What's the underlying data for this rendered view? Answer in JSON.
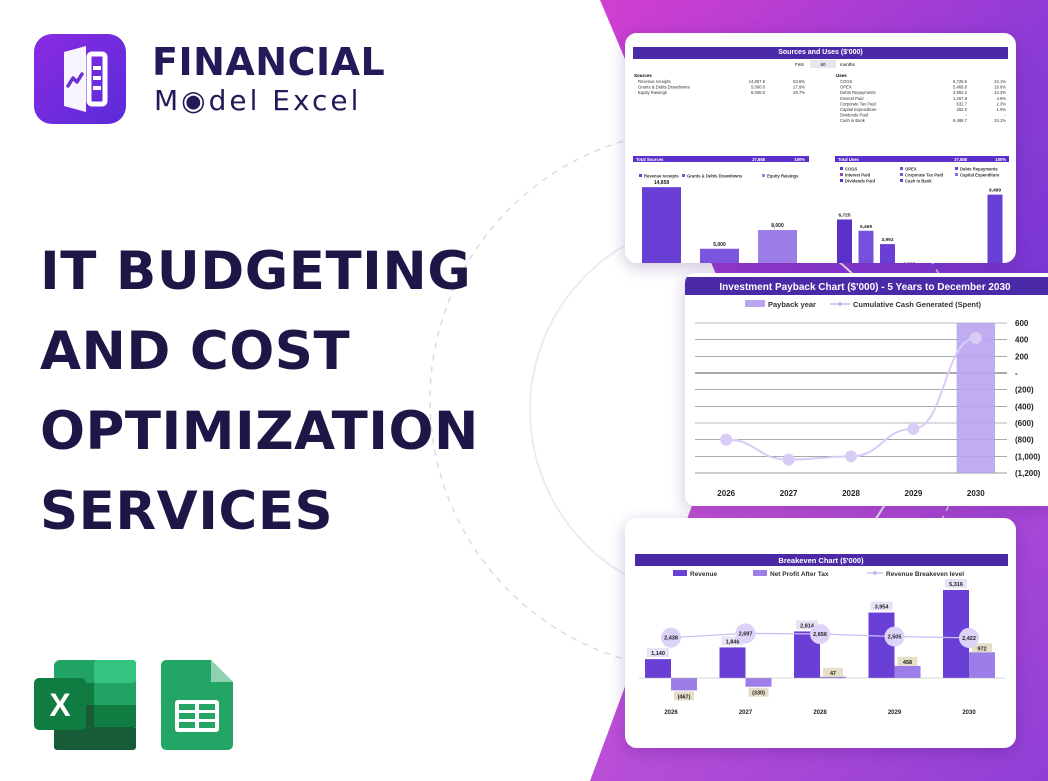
{
  "brand": {
    "line1": "FINANCIAL",
    "line2": "M◉del Excel"
  },
  "headline": {
    "lines": [
      "IT BUDGETING",
      "AND COST",
      "OPTIMIZATION",
      "SERVICES"
    ]
  },
  "colors": {
    "primary": "#5b2fc9",
    "accent": "#c04bd6",
    "light": "#b9a4f0",
    "dark": "#1d1748"
  },
  "icons": {
    "excel": "excel-icon",
    "sheets": "google-sheets-icon",
    "logo": "financial-model-excel-logo-icon"
  },
  "sources_uses": {
    "title": "Sources and Uses ($'000)",
    "first_label": "First",
    "first_value": "60",
    "months_label": "months",
    "sources_header": "Sources",
    "sources": [
      {
        "label": "Revenue receipts",
        "value": "14,857.6",
        "pct": "53.5%"
      },
      {
        "label": "Grants & Debts Drawdowns",
        "value": "5,000.0",
        "pct": "17.9%"
      },
      {
        "label": "Equity Raisings",
        "value": "8,000.0",
        "pct": "28.7%"
      }
    ],
    "sources_total": {
      "label": "Total Sources",
      "value": "27,858",
      "pct": "100%"
    },
    "uses_header": "Uses",
    "uses": [
      {
        "label": "COGS",
        "value": "6,725.5",
        "pct": "24.1%"
      },
      {
        "label": "OPEX",
        "value": "5,468.8",
        "pct": "19.6%"
      },
      {
        "label": "Debts Repayments",
        "value": "3,992.2",
        "pct": "14.3%"
      },
      {
        "label": "Interest Paid",
        "value": "1,267.8",
        "pct": "4.6%"
      },
      {
        "label": "Corporate Tax Paid",
        "value": "632.7",
        "pct": "2.3%"
      },
      {
        "label": "Capital Expenditure",
        "value": "282.0",
        "pct": "1.0%"
      },
      {
        "label": "Dividends Paid",
        "value": "-",
        "pct": "-"
      },
      {
        "label": "Cash in Bank",
        "value": "9,488.7",
        "pct": "34.1%"
      }
    ],
    "uses_total": {
      "label": "Total Uses",
      "value": "27,858",
      "pct": "100%"
    }
  },
  "chart_data": [
    {
      "type": "bar",
      "title": "",
      "categories": [
        "Revenue receipts",
        "Grants & Debts Drawdowns",
        "Equity Raisings"
      ],
      "values": [
        14858,
        5000,
        8000
      ],
      "labels": [
        "14,858",
        "5,000",
        "8,000"
      ],
      "legend": [
        "Revenue receipts",
        "Grants & Debts Drawdowns",
        "Equity Raisings"
      ],
      "colors": [
        "#6a3fd6",
        "#7b55de",
        "#9d7ee8"
      ],
      "ylim": [
        0,
        16000
      ]
    },
    {
      "type": "bar",
      "title": "",
      "categories": [
        "COGS",
        "OPEX",
        "Debts Repayments",
        "Interest Paid",
        "Corporate Tax Paid",
        "Capital Expenditure",
        "Dividends Paid",
        "Cash in Bank"
      ],
      "values": [
        6725,
        5469,
        3992,
        1268,
        633,
        282,
        0,
        9489
      ],
      "labels": [
        "6,725",
        "5,469",
        "3,992",
        "1,268",
        "633",
        "282",
        "0",
        "9,489"
      ],
      "legend": [
        "COGS",
        "OPEX",
        "Debts Repayments",
        "Interest Paid",
        "Corporate Tax Paid",
        "Capital Expenditure",
        "Dividends Paid",
        "Cash in Bank"
      ],
      "colors": [
        "#5b2fc9",
        "#7650db",
        "#6a3fd6",
        "#9b4ba8",
        "#7b55de",
        "#8a6fe0",
        "#5b2fc9",
        "#6a3fd6"
      ],
      "ylim": [
        0,
        10000
      ]
    },
    {
      "type": "line",
      "title": "Investment Payback Chart ($'000) - 5 Years to December 2030",
      "categories": [
        "2026",
        "2027",
        "2028",
        "2029",
        "2030"
      ],
      "series": [
        {
          "name": "Cumulative Cash Generated (Spent)",
          "values": [
            -800,
            -1040,
            -1000,
            -670,
            420
          ]
        },
        {
          "name": "Payback year",
          "values": [
            0,
            0,
            0,
            0,
            1
          ]
        }
      ],
      "legend": [
        "Payback year",
        "Cumulative Cash Generated (Spent)"
      ],
      "yticks": [
        "600",
        "400",
        "200",
        "-",
        "(200)",
        "(400)",
        "(600)",
        "(800)",
        "(1,000)",
        "(1,200)"
      ],
      "ylim": [
        -1200,
        600
      ],
      "grid": true
    },
    {
      "type": "bar",
      "title": "Breakeven Chart ($'000)",
      "categories": [
        "2026",
        "2027",
        "2028",
        "2029",
        "2030"
      ],
      "series": [
        {
          "name": "Revenue",
          "values": [
            1140,
            1848,
            2814,
            3954,
            5316
          ],
          "labels": [
            "1,140",
            "1,848",
            "2,814",
            "3,954",
            "5,316"
          ]
        },
        {
          "name": "Net Profit After Tax",
          "values": [
            -467,
            -330,
            47,
            458,
            972
          ],
          "labels": [
            "(467)",
            "(330)",
            "47",
            "458",
            "972"
          ]
        },
        {
          "name": "Revenue Breakeven level",
          "values": [
            2438,
            2697,
            2656,
            2505,
            2422
          ],
          "labels": [
            "2,438",
            "2,697",
            "2,656",
            "2,505",
            "2,422"
          ]
        }
      ],
      "legend": [
        "Revenue",
        "Net Profit After Tax",
        "Revenue Breakeven level"
      ]
    }
  ]
}
